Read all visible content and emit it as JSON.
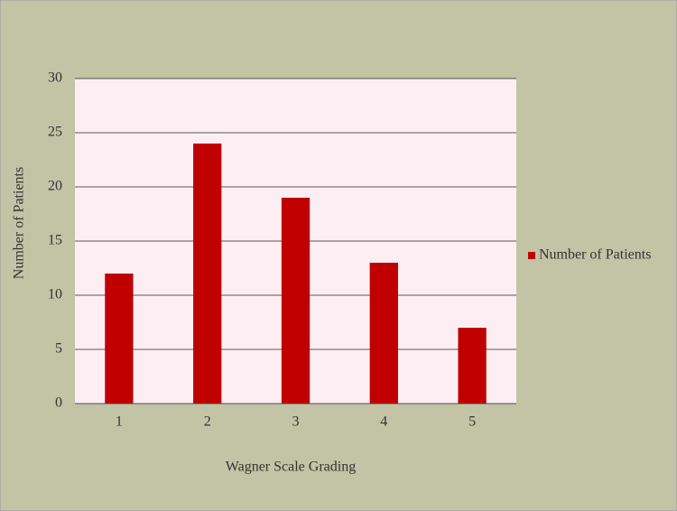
{
  "chart_data": {
    "type": "bar",
    "x_label": "Wagner Scale Grading",
    "y_label": "Number of Patients",
    "categories": [
      "1",
      "2",
      "3",
      "4",
      "5"
    ],
    "series": [
      {
        "name": "Number of Patients",
        "color": "#c00000",
        "values": [
          12,
          24,
          19,
          13,
          7
        ]
      }
    ],
    "ylim": [
      0,
      30
    ],
    "yticks": [
      0,
      5,
      10,
      15,
      20,
      25,
      30
    ],
    "grid": true,
    "legend": "right"
  }
}
